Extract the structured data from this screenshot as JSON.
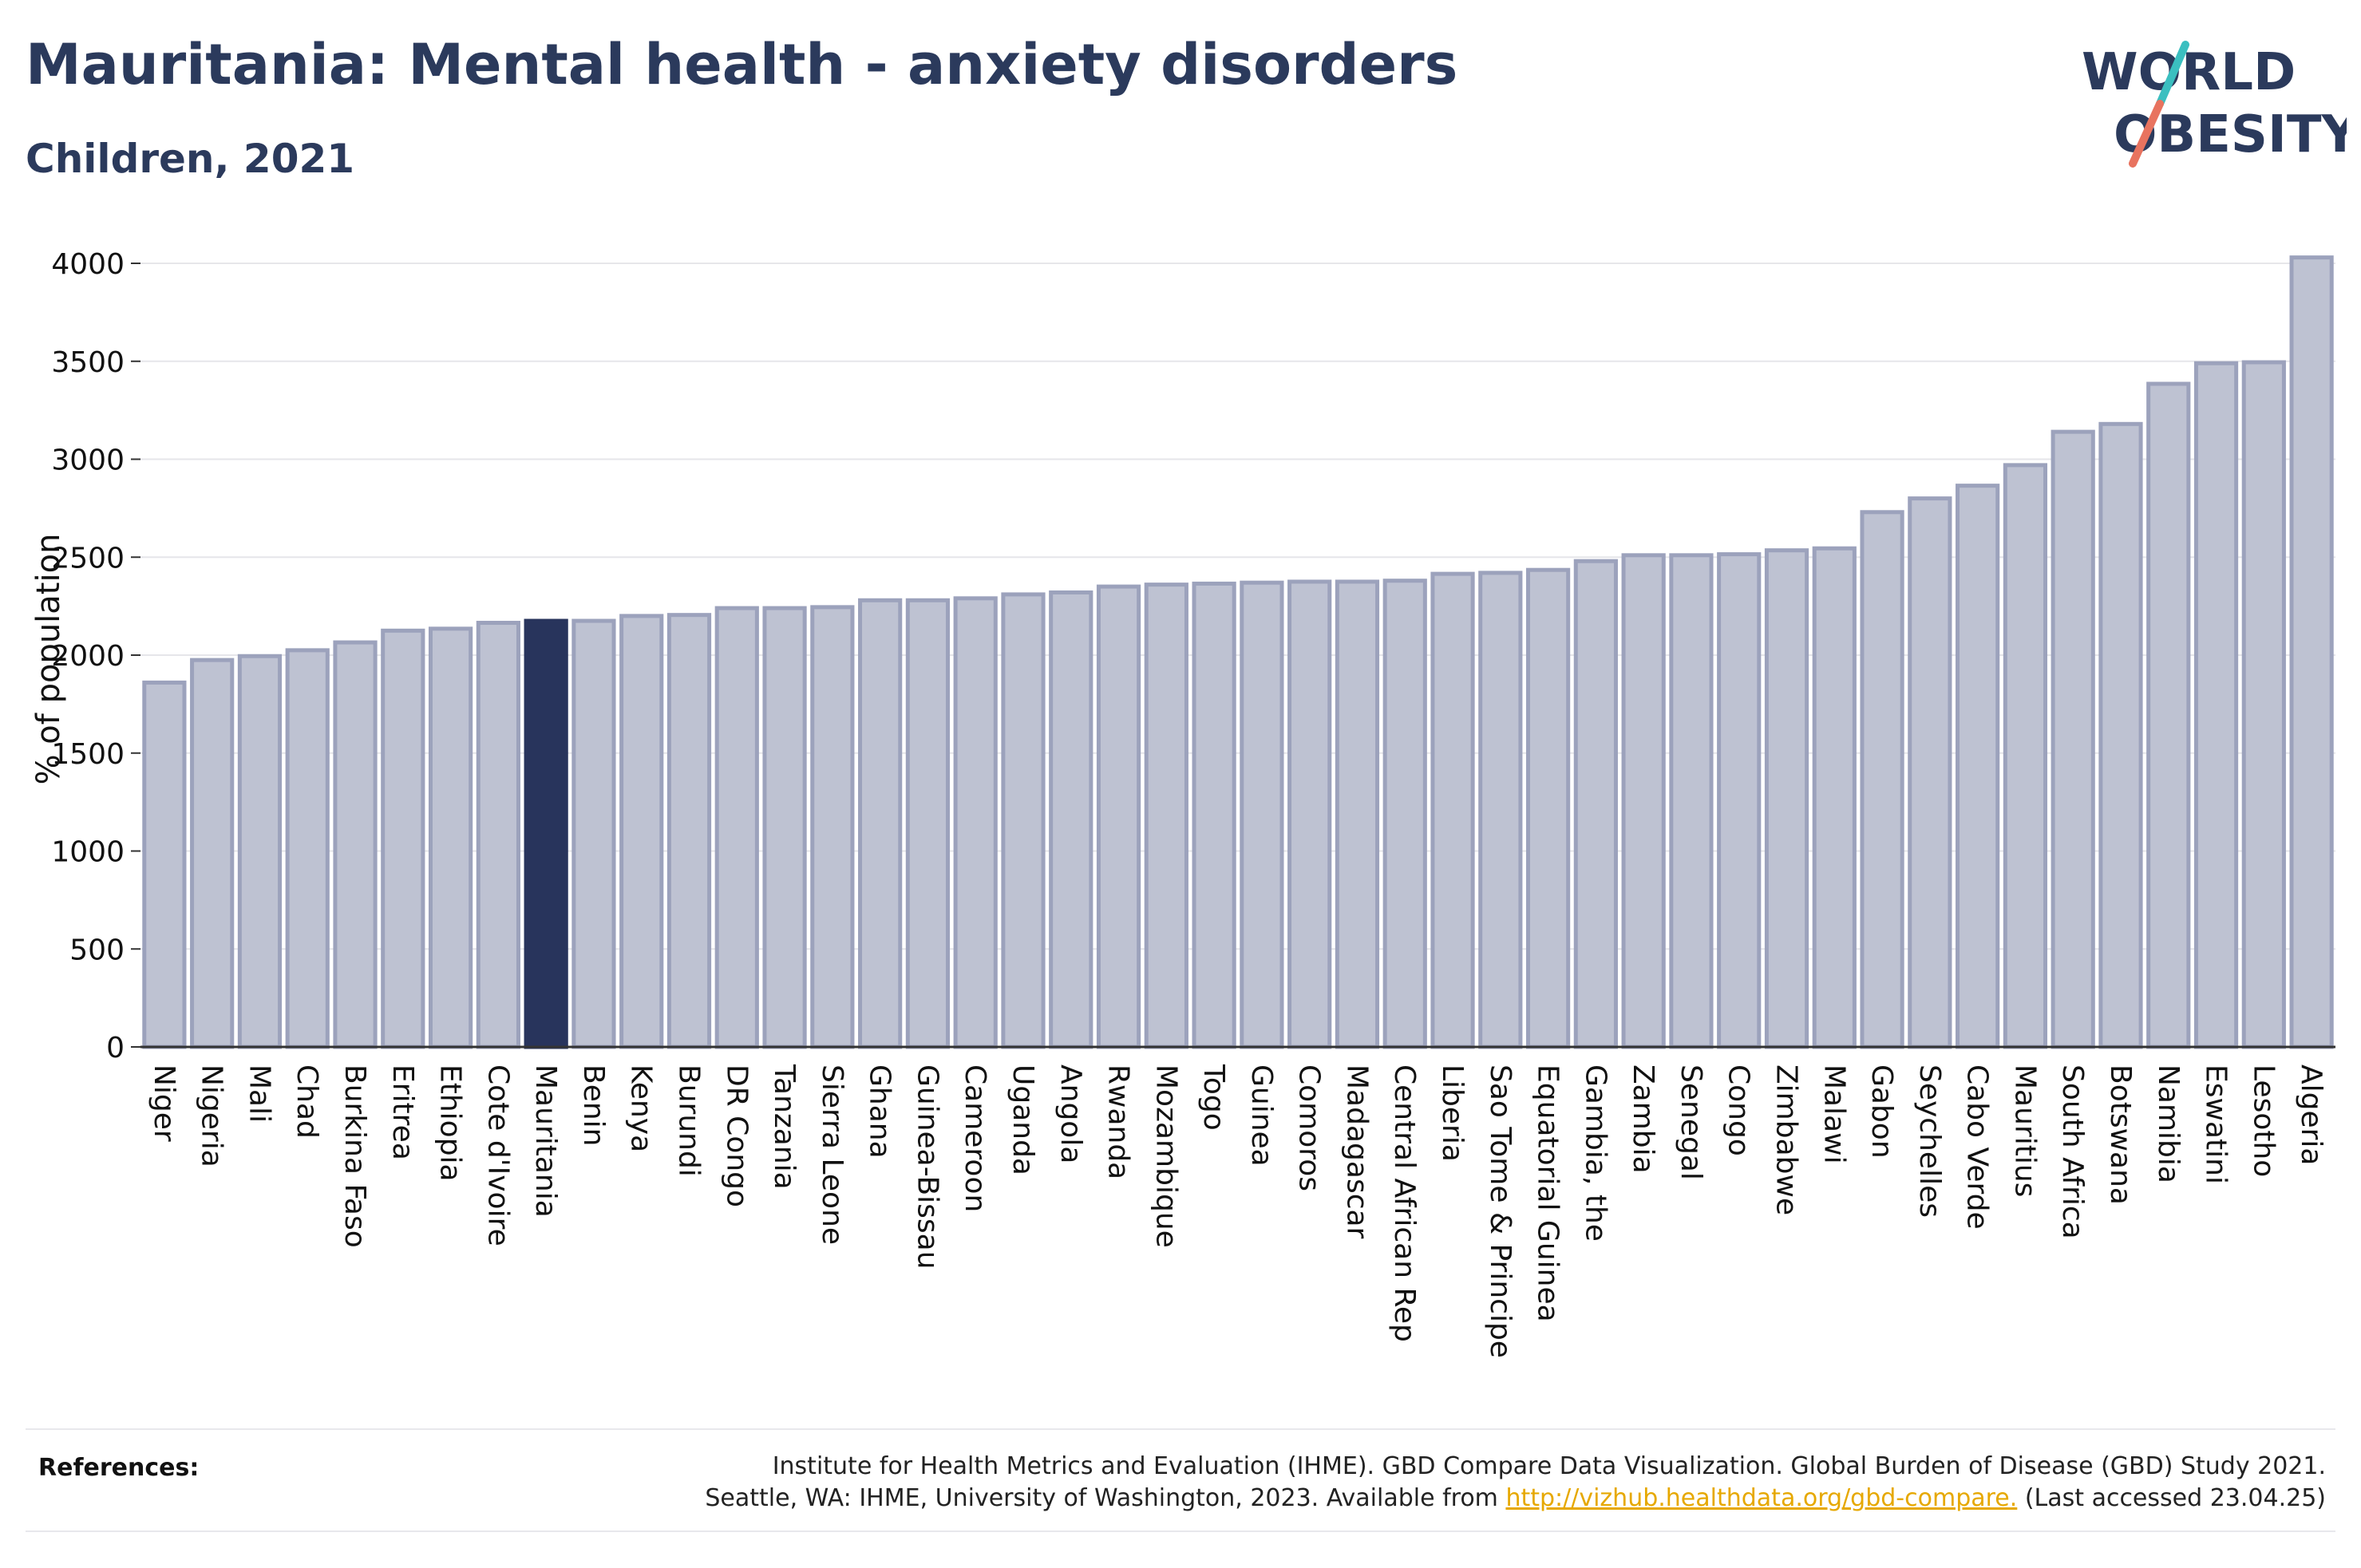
{
  "header": {
    "title": "Mauritania: Mental health - anxiety disorders",
    "subtitle": "Children, 2021"
  },
  "logo": {
    "line1": "WORLD",
    "line2": "OBESITY",
    "icon": "world-obesity-slash-logo"
  },
  "colors": {
    "bar": "#bec2d2",
    "bar_border": "#9ca2bc",
    "highlight": "#28345c",
    "axis": "#333333",
    "grid": "#e6e6ea",
    "link": "#e6a800",
    "logo_teal": "#3bbfc0",
    "logo_coral": "#e8735f"
  },
  "chart_data": {
    "type": "bar",
    "title": "Mauritania: Mental health - anxiety disorders",
    "subtitle": "Children, 2021",
    "ylabel": "% of population",
    "xlabel": "",
    "ylim": [
      0,
      4000
    ],
    "yticks": [
      0,
      500,
      1000,
      1500,
      2000,
      2500,
      3000,
      3500,
      4000
    ],
    "grid": true,
    "highlight": "Mauritania",
    "categories": [
      "Niger",
      "Nigeria",
      "Mali",
      "Chad",
      "Burkina Faso",
      "Eritrea",
      "Ethiopia",
      "Cote d'Ivoire",
      "Mauritania",
      "Benin",
      "Kenya",
      "Burundi",
      "DR Congo",
      "Tanzania",
      "Sierra Leone",
      "Ghana",
      "Guinea-Bissau",
      "Cameroon",
      "Uganda",
      "Angola",
      "Rwanda",
      "Mozambique",
      "Togo",
      "Guinea",
      "Comoros",
      "Madagascar",
      "Central African Rep",
      "Liberia",
      "Sao Tome & Principe",
      "Equatorial Guinea",
      "Gambia, the",
      "Zambia",
      "Senegal",
      "Congo",
      "Zimbabwe",
      "Malawi",
      "Gabon",
      "Seychelles",
      "Cabo Verde",
      "Mauritius",
      "South Africa",
      "Botswana",
      "Namibia",
      "Eswatini",
      "Lesotho",
      "Algeria"
    ],
    "values": [
      1860,
      1975,
      1995,
      2025,
      2065,
      2125,
      2135,
      2165,
      2175,
      2175,
      2200,
      2205,
      2240,
      2240,
      2245,
      2280,
      2280,
      2290,
      2310,
      2320,
      2350,
      2360,
      2365,
      2370,
      2375,
      2375,
      2380,
      2415,
      2420,
      2435,
      2480,
      2510,
      2510,
      2515,
      2535,
      2545,
      2730,
      2800,
      2865,
      2970,
      3140,
      3180,
      3385,
      3490,
      3495,
      4030
    ]
  },
  "references": {
    "label": "References:",
    "line1": "Institute for Health Metrics and Evaluation (IHME). GBD Compare Data Visualization. Global Burden of Disease (GBD) Study 2021.",
    "line2_prefix": "Seattle, WA: IHME, University of Washington, 2023. Available from ",
    "link": "http://vizhub.healthdata.org/gbd-compare.",
    "line2_suffix": " (Last accessed 23.04.25)"
  }
}
